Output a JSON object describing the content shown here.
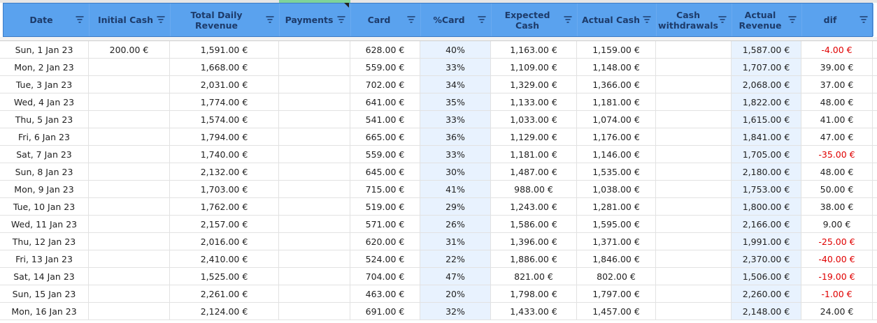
{
  "columns": [
    {
      "key": "date",
      "label": "Date"
    },
    {
      "key": "initial_cash",
      "label": "Initial Cash"
    },
    {
      "key": "total_daily_revenue",
      "label": "Total Daily Revenue"
    },
    {
      "key": "payments",
      "label": "Payments"
    },
    {
      "key": "card",
      "label": "Card"
    },
    {
      "key": "pct_card",
      "label": "%Card"
    },
    {
      "key": "expected_cash",
      "label": "Expected Cash"
    },
    {
      "key": "actual_cash",
      "label": "Actual Cash"
    },
    {
      "key": "cash_withdrawals",
      "label": "Cash withdrawals"
    },
    {
      "key": "actual_revenue",
      "label": "Actual Revenue"
    },
    {
      "key": "dif",
      "label": "dif"
    }
  ],
  "rows": [
    [
      "Sun,  1 Jan 23",
      "200.00 €",
      "1,591.00 €",
      "",
      "628.00 €",
      "40%",
      "1,163.00 €",
      "1,159.00 €",
      "",
      "1,587.00 €",
      "-4.00 €"
    ],
    [
      "Mon,  2 Jan 23",
      "",
      "1,668.00 €",
      "",
      "559.00 €",
      "33%",
      "1,109.00 €",
      "1,148.00 €",
      "",
      "1,707.00 €",
      "39.00 €"
    ],
    [
      "Tue,  3 Jan 23",
      "",
      "2,031.00 €",
      "",
      "702.00 €",
      "34%",
      "1,329.00 €",
      "1,366.00 €",
      "",
      "2,068.00 €",
      "37.00 €"
    ],
    [
      "Wed,  4 Jan 23",
      "",
      "1,774.00 €",
      "",
      "641.00 €",
      "35%",
      "1,133.00 €",
      "1,181.00 €",
      "",
      "1,822.00 €",
      "48.00 €"
    ],
    [
      "Thu,  5 Jan 23",
      "",
      "1,574.00 €",
      "",
      "541.00 €",
      "33%",
      "1,033.00 €",
      "1,074.00 €",
      "",
      "1,615.00 €",
      "41.00 €"
    ],
    [
      "Fri,  6 Jan 23",
      "",
      "1,794.00 €",
      "",
      "665.00 €",
      "36%",
      "1,129.00 €",
      "1,176.00 €",
      "",
      "1,841.00 €",
      "47.00 €"
    ],
    [
      "Sat,  7 Jan 23",
      "",
      "1,740.00 €",
      "",
      "559.00 €",
      "33%",
      "1,181.00 €",
      "1,146.00 €",
      "",
      "1,705.00 €",
      "-35.00 €"
    ],
    [
      "Sun,  8 Jan 23",
      "",
      "2,132.00 €",
      "",
      "645.00 €",
      "30%",
      "1,487.00 €",
      "1,535.00 €",
      "",
      "2,180.00 €",
      "48.00 €"
    ],
    [
      "Mon,  9 Jan 23",
      "",
      "1,703.00 €",
      "",
      "715.00 €",
      "41%",
      "988.00 €",
      "1,038.00 €",
      "",
      "1,753.00 €",
      "50.00 €"
    ],
    [
      "Tue,  10 Jan 23",
      "",
      "1,762.00 €",
      "",
      "519.00 €",
      "29%",
      "1,243.00 €",
      "1,281.00 €",
      "",
      "1,800.00 €",
      "38.00 €"
    ],
    [
      "Wed,  11 Jan 23",
      "",
      "2,157.00 €",
      "",
      "571.00 €",
      "26%",
      "1,586.00 €",
      "1,595.00 €",
      "",
      "2,166.00 €",
      "9.00 €"
    ],
    [
      "Thu,  12 Jan 23",
      "",
      "2,016.00 €",
      "",
      "620.00 €",
      "31%",
      "1,396.00 €",
      "1,371.00 €",
      "",
      "1,991.00 €",
      "-25.00 €"
    ],
    [
      "Fri,  13 Jan 23",
      "",
      "2,410.00 €",
      "",
      "524.00 €",
      "22%",
      "1,886.00 €",
      "1,846.00 €",
      "",
      "2,370.00 €",
      "-40.00 €"
    ],
    [
      "Sat,  14 Jan 23",
      "",
      "1,525.00 €",
      "",
      "704.00 €",
      "47%",
      "821.00 €",
      "802.00 €",
      "",
      "1,506.00 €",
      "-19.00 €"
    ],
    [
      "Sun,  15 Jan 23",
      "",
      "2,261.00 €",
      "",
      "463.00 €",
      "20%",
      "1,798.00 €",
      "1,797.00 €",
      "",
      "2,260.00 €",
      "-1.00 €"
    ],
    [
      "Mon,  16 Jan 23",
      "",
      "2,124.00 €",
      "",
      "691.00 €",
      "32%",
      "1,433.00 €",
      "1,457.00 €",
      "",
      "2,148.00 €",
      "24.00 €"
    ]
  ],
  "colors": {
    "header_bg": "#5aa2ee",
    "header_text": "#1d3b6a",
    "highlight_col_bg": "#e8f2fe",
    "negative_text": "#e00000"
  },
  "icons": {
    "filter": "filter-icon"
  }
}
